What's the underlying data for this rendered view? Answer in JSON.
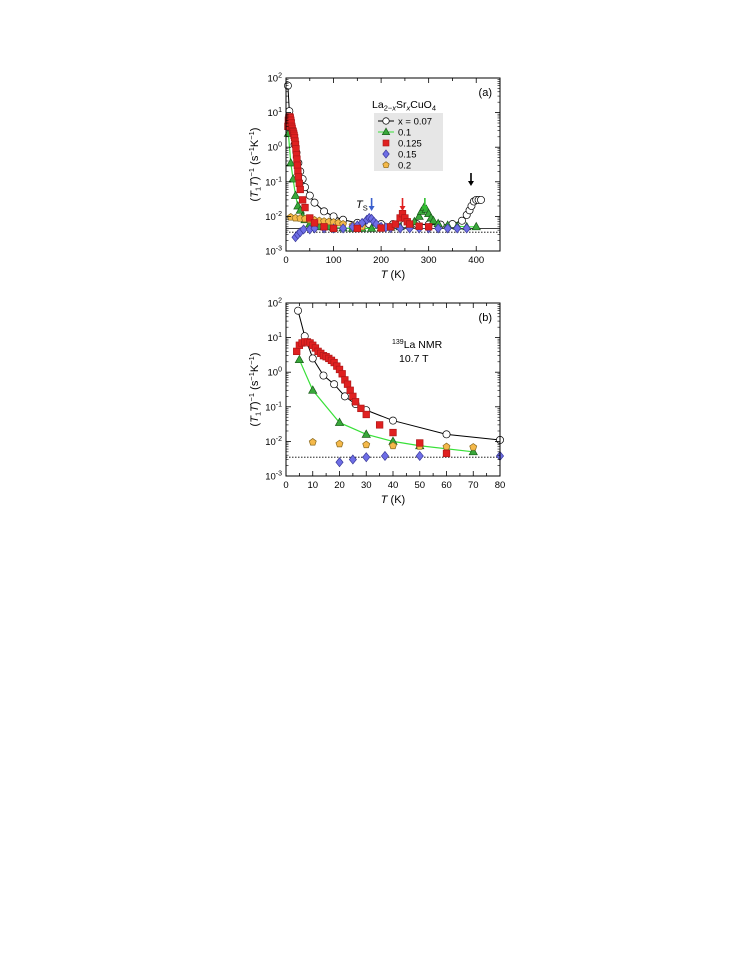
{
  "chart_data": [
    {
      "type": "scatter",
      "panel_label": "(a)",
      "title_parts": {
        "base": "La",
        "sub1": "2−",
        "x": "x",
        "mid": "Sr",
        "sub2": "x",
        "tail": "CuO",
        "sub3": "4"
      },
      "xlabel": "T",
      "xlabel_unit": " (K)",
      "ylabel": "(T₁T)⁻¹ (s⁻¹K⁻¹)",
      "ylabel_parts": {
        "open": "(",
        "t1": "T",
        "one": "1",
        "t2": "T",
        "close": ")",
        "minus1": "−1",
        "unit_open": " (s",
        "unit_mid": "K",
        "unit_close": ")"
      },
      "log_y": true,
      "xlim": [
        0,
        450
      ],
      "ylim_exp": [
        -3,
        2
      ],
      "xticks": [
        0,
        100,
        200,
        300,
        400
      ],
      "yticks_exp": [
        -3,
        -2,
        -1,
        0,
        1,
        2
      ],
      "legend": {
        "placement": "upper-center",
        "entries": [
          "x = 0.07",
          "0.1",
          "0.125",
          "0.15",
          "0.2"
        ]
      },
      "ts_label": "T",
      "ts_sub": "S",
      "arrows": [
        {
          "x": 180,
          "color": "#3a5fcd"
        },
        {
          "x": 245,
          "color": "#e02020"
        },
        {
          "x": 292,
          "color": "#2fbf2f"
        },
        {
          "x": 389,
          "color": "#000000"
        }
      ],
      "ref_lines": [
        {
          "y": 0.0045,
          "style": "solid"
        },
        {
          "y": 0.0035,
          "style": "dotted"
        }
      ],
      "series": [
        {
          "name": "x = 0.07",
          "marker": "circle",
          "fill": "#ffffff",
          "line": "#000000",
          "x": [
            4,
            7,
            10,
            14,
            18,
            22,
            26,
            30,
            35,
            40,
            50,
            60,
            80,
            100,
            120,
            150,
            175,
            200,
            225,
            250,
            275,
            300,
            325,
            350,
            370,
            380,
            386,
            390,
            395,
            400,
            405,
            410
          ],
          "y": [
            60,
            11,
            6,
            2.5,
            1.2,
            0.7,
            0.35,
            0.2,
            0.12,
            0.07,
            0.04,
            0.025,
            0.014,
            0.01,
            0.008,
            0.0065,
            0.006,
            0.006,
            0.006,
            0.006,
            0.006,
            0.0058,
            0.0058,
            0.006,
            0.0075,
            0.011,
            0.015,
            0.02,
            0.027,
            0.03,
            0.03,
            0.03
          ]
        },
        {
          "name": "0.1",
          "marker": "triangle",
          "fill": "#38a83a",
          "line": "#38e038",
          "x": [
            5,
            10,
            15,
            20,
            25,
            30,
            35,
            40,
            50,
            60,
            70,
            80,
            90,
            100,
            120,
            140,
            160,
            180,
            200,
            220,
            240,
            260,
            270,
            280,
            285,
            290,
            295,
            300,
            305,
            310,
            320,
            340,
            360,
            380,
            400
          ],
          "y": [
            2.5,
            0.35,
            0.12,
            0.04,
            0.02,
            0.015,
            0.01,
            0.008,
            0.006,
            0.0055,
            0.005,
            0.005,
            0.005,
            0.0048,
            0.0046,
            0.0045,
            0.0045,
            0.0045,
            0.0046,
            0.0048,
            0.005,
            0.0058,
            0.007,
            0.01,
            0.014,
            0.018,
            0.016,
            0.012,
            0.009,
            0.0075,
            0.0062,
            0.0055,
            0.0052,
            0.005,
            0.005
          ]
        },
        {
          "name": "0.125",
          "marker": "square",
          "fill": "#e02020",
          "line": "#b01818",
          "x": [
            4,
            5,
            6,
            7,
            8,
            9,
            10,
            11,
            12,
            13,
            14,
            15,
            16,
            17,
            18,
            19,
            20,
            21,
            22,
            23,
            24,
            25,
            26,
            28,
            30,
            35,
            40,
            50,
            60,
            80,
            100,
            150,
            200,
            220,
            230,
            240,
            245,
            250,
            255,
            260,
            280,
            300
          ],
          "y": [
            4,
            6,
            7,
            7.5,
            7.5,
            7,
            6,
            5,
            4,
            3.5,
            3,
            2.8,
            2.5,
            2.2,
            1.9,
            1.5,
            1.2,
            0.9,
            0.6,
            0.45,
            0.3,
            0.2,
            0.14,
            0.09,
            0.06,
            0.03,
            0.018,
            0.009,
            0.0065,
            0.005,
            0.0045,
            0.0045,
            0.0046,
            0.005,
            0.006,
            0.009,
            0.012,
            0.009,
            0.007,
            0.006,
            0.0052,
            0.005
          ]
        },
        {
          "name": "0.15",
          "marker": "diamond",
          "fill": "#6e6ee6",
          "line": "#3a3a9a",
          "x": [
            20,
            25,
            30,
            37,
            50,
            60,
            80,
            100,
            120,
            140,
            150,
            160,
            170,
            175,
            180,
            185,
            190,
            200,
            210,
            220,
            240,
            260,
            280,
            300,
            320,
            340,
            360,
            380
          ],
          "y": [
            0.0025,
            0.003,
            0.0035,
            0.0042,
            0.0042,
            0.0045,
            0.0045,
            0.0045,
            0.0045,
            0.005,
            0.0055,
            0.0065,
            0.008,
            0.009,
            0.0085,
            0.007,
            0.006,
            0.005,
            0.0048,
            0.0046,
            0.0045,
            0.0045,
            0.0045,
            0.0045,
            0.0045,
            0.0045,
            0.0045,
            0.0045
          ]
        },
        {
          "name": "0.2",
          "marker": "pentagon",
          "fill": "#f5b94a",
          "line": "#8a6a20",
          "x": [
            10,
            20,
            30,
            40,
            50,
            60,
            70,
            80,
            90,
            100,
            110,
            120,
            140,
            160
          ],
          "y": [
            0.0095,
            0.009,
            0.0088,
            0.0085,
            0.008,
            0.0078,
            0.0075,
            0.0072,
            0.007,
            0.0068,
            0.0065,
            0.006,
            0.0055,
            0.005
          ]
        }
      ]
    },
    {
      "type": "scatter",
      "panel_label": "(b)",
      "annotation_line1_sup": "139",
      "annotation_line1": "La NMR",
      "annotation_line2": "10.7 T",
      "xlabel": "T",
      "xlabel_unit": " (K)",
      "log_y": true,
      "xlim": [
        0,
        80
      ],
      "ylim_exp": [
        -3,
        2
      ],
      "xticks": [
        0,
        10,
        20,
        30,
        40,
        50,
        60,
        70,
        80
      ],
      "yticks_exp": [
        -3,
        -2,
        -1,
        0,
        1,
        2
      ],
      "ref_lines": [
        {
          "y": 0.0035,
          "style": "dotted"
        }
      ],
      "series": [
        {
          "name": "x = 0.07",
          "marker": "circle",
          "fill": "#ffffff",
          "line": "#000000",
          "x": [
            4.5,
            7,
            10,
            14,
            18,
            22,
            26,
            30,
            40,
            60,
            80
          ],
          "y": [
            60,
            11,
            2.5,
            0.8,
            0.45,
            0.2,
            0.12,
            0.08,
            0.04,
            0.016,
            0.011
          ]
        },
        {
          "name": "0.1",
          "marker": "triangle",
          "fill": "#38a83a",
          "line": "#38e038",
          "x": [
            5,
            10,
            20,
            30,
            40,
            50,
            70
          ],
          "y": [
            2.3,
            0.3,
            0.035,
            0.016,
            0.01,
            0.0075,
            0.005
          ]
        },
        {
          "name": "0.125",
          "marker": "square",
          "fill": "#e02020",
          "line": "#b01818",
          "x": [
            4,
            5,
            6,
            7,
            8,
            9,
            10,
            11,
            12,
            13,
            14,
            15,
            16,
            17,
            18,
            19,
            20,
            21,
            22,
            23,
            24,
            25,
            26,
            28,
            30,
            35,
            40,
            50,
            60
          ],
          "y": [
            4,
            6,
            7,
            7.5,
            7.5,
            7,
            6,
            5,
            4,
            3.5,
            3,
            2.8,
            2.5,
            2.2,
            1.9,
            1.5,
            1.2,
            0.9,
            0.6,
            0.45,
            0.3,
            0.2,
            0.14,
            0.09,
            0.06,
            0.03,
            0.018,
            0.009,
            0.0045
          ]
        },
        {
          "name": "0.15",
          "marker": "diamond",
          "fill": "#6e6ee6",
          "line": "#3a3a9a",
          "x": [
            20,
            25,
            30,
            37,
            50,
            80
          ],
          "y": [
            0.0025,
            0.003,
            0.0035,
            0.0038,
            0.0038,
            0.0038
          ]
        },
        {
          "name": "0.2",
          "marker": "pentagon",
          "fill": "#f5b94a",
          "line": "#8a6a20",
          "x": [
            10,
            20,
            30,
            40,
            50,
            60,
            70
          ],
          "y": [
            0.0095,
            0.0085,
            0.008,
            0.0075,
            0.0072,
            0.007,
            0.0068
          ]
        }
      ]
    }
  ]
}
